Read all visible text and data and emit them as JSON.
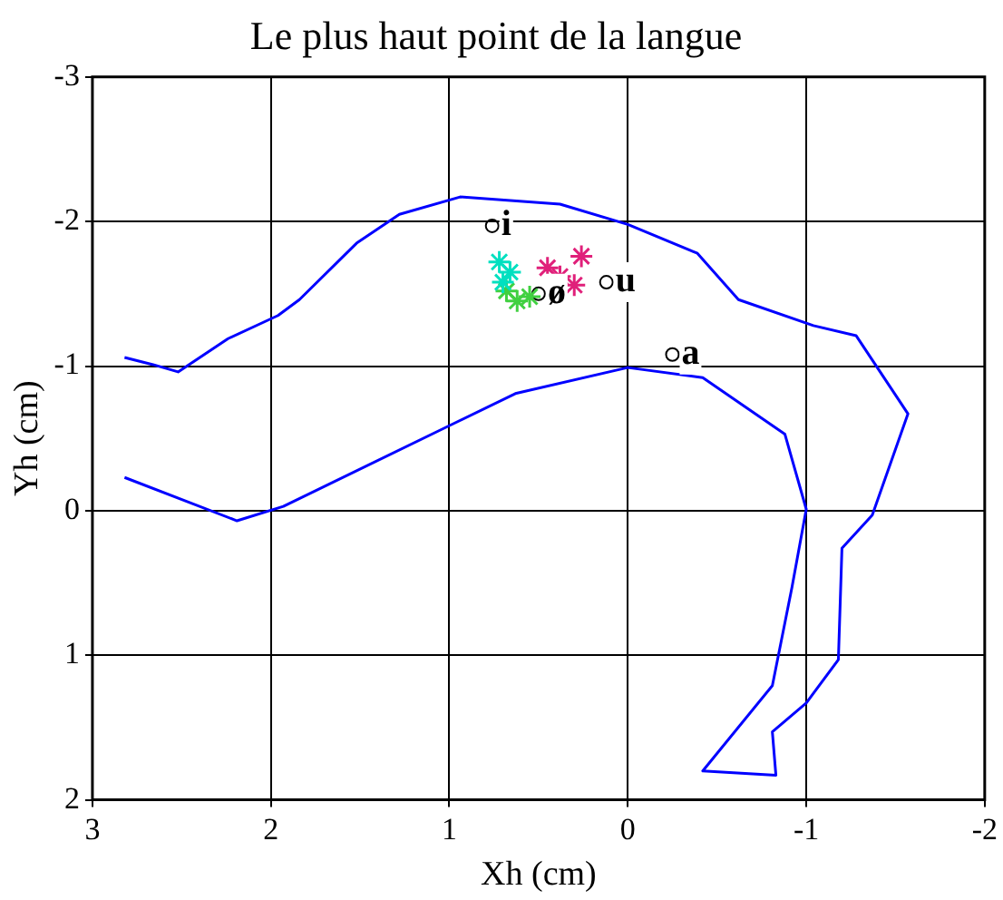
{
  "chart_data": {
    "type": "line",
    "title": "Le plus haut point de la langue",
    "xlabel": "Xh (cm)",
    "ylabel": "Yh (cm)",
    "xlim": [
      3,
      -2
    ],
    "xticks": [
      3,
      2,
      1,
      0,
      -1,
      -2
    ],
    "ylim": [
      2,
      -3
    ],
    "yticks": [
      -3,
      -2,
      -1,
      0,
      1,
      2
    ],
    "grid": true,
    "legend": false,
    "marker": "none",
    "line_style": "solid",
    "series": [
      {
        "type": "line",
        "color": "#0000ff",
        "x": [
          2.82,
          2.19,
          1.93,
          0.98,
          0.63,
          0.0,
          -0.42,
          -0.88,
          -1.0,
          -0.92,
          -0.81,
          -0.42,
          -0.83,
          -0.81,
          -1.0,
          -1.18,
          -1.2,
          -1.37,
          -1.57,
          -1.28,
          -1.04,
          -0.62,
          -0.39,
          0.0,
          0.38,
          0.94,
          1.28,
          1.52,
          1.84,
          1.96,
          2.24,
          2.52,
          2.66,
          2.82
        ],
        "values": [
          -0.23,
          0.07,
          -0.03,
          -0.6,
          -0.81,
          -0.99,
          -0.92,
          -0.53,
          -0.01,
          0.53,
          1.21,
          1.8,
          1.83,
          1.53,
          1.33,
          1.03,
          0.26,
          0.03,
          -0.67,
          -1.21,
          -1.28,
          -1.46,
          -1.78,
          -1.98,
          -2.12,
          -2.17,
          -2.05,
          -1.85,
          -1.46,
          -1.35,
          -1.19,
          -0.96,
          -1.01,
          -1.06
        ]
      },
      {
        "type": "scatter",
        "marker": "cross",
        "color": "#00e0c0",
        "x": [
          0.72,
          0.66,
          0.7
        ],
        "values": [
          -1.72,
          -1.65,
          -1.58
        ]
      },
      {
        "type": "scatter",
        "marker": "cross",
        "color": "#40d040",
        "x": [
          0.68,
          0.62,
          0.55
        ],
        "values": [
          -1.52,
          -1.45,
          -1.48
        ]
      },
      {
        "type": "scatter",
        "marker": "cross",
        "color": "#e0207a",
        "x": [
          0.45,
          0.38,
          0.3,
          0.26
        ],
        "values": [
          -1.68,
          -1.62,
          -1.56,
          -1.76
        ]
      },
      {
        "type": "scatter",
        "marker": "circle",
        "name": "i",
        "color": "#000000",
        "x": [
          0.76
        ],
        "values": [
          -1.97
        ]
      },
      {
        "type": "scatter",
        "marker": "circle",
        "name": "u",
        "color": "#000000",
        "x": [
          0.12
        ],
        "values": [
          -1.58
        ]
      },
      {
        "type": "scatter",
        "marker": "circle",
        "name": "ø",
        "color": "#000000",
        "x": [
          0.5
        ],
        "values": [
          -1.5
        ]
      },
      {
        "type": "scatter",
        "marker": "circle",
        "name": "a",
        "color": "#000000",
        "x": [
          -0.25
        ],
        "values": [
          -1.08
        ]
      }
    ]
  }
}
